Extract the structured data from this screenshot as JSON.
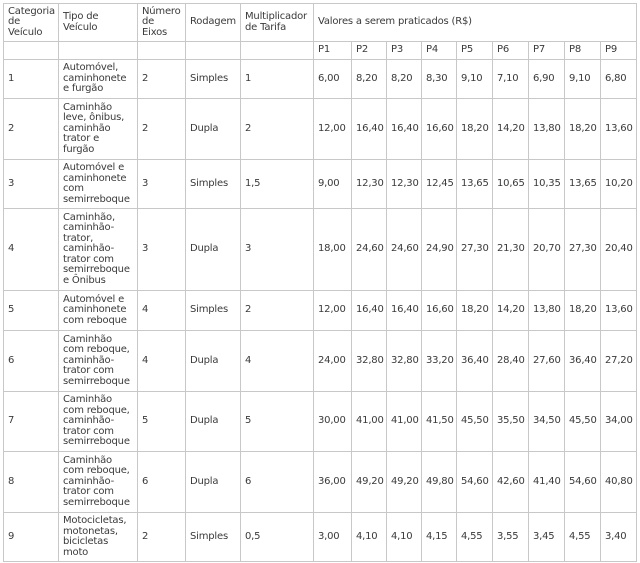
{
  "headers": {
    "categoria": "Categoria\nde\nVeículo",
    "tipo": "Tipo de\nVeículo",
    "eixos": "Número\nde\nEixos",
    "rodagem": "Rodagem",
    "multiplicador": "Multiplicador\nde Tarifa",
    "valores": "Valores a serem praticados (R$)",
    "plazas": [
      "P1",
      "P2",
      "P3",
      "P4",
      "P5",
      "P6",
      "P7",
      "P8",
      "P9"
    ]
  },
  "rows": [
    {
      "categoria": "1",
      "tipo": "Automóvel,\ncaminhonete\ne furgão",
      "eixos": "2",
      "rodagem": "Simples",
      "multiplicador": "1",
      "valores": [
        "6,00",
        "8,20",
        "8,20",
        "8,30",
        "9,10",
        "7,10",
        "6,90",
        "9,10",
        "6,80"
      ]
    },
    {
      "categoria": "2",
      "tipo": "Caminhão\nleve, ônibus,\ncaminhão\ntrator e\nfurgão",
      "eixos": "2",
      "rodagem": "Dupla",
      "multiplicador": "2",
      "valores": [
        "12,00",
        "16,40",
        "16,40",
        "16,60",
        "18,20",
        "14,20",
        "13,80",
        "18,20",
        "13,60"
      ]
    },
    {
      "categoria": "3",
      "tipo": "Automóvel e\ncaminhonete\ncom\nsemirreboque",
      "eixos": "3",
      "rodagem": "Simples",
      "multiplicador": "1,5",
      "valores": [
        "9,00",
        "12,30",
        "12,30",
        "12,45",
        "13,65",
        "10,65",
        "10,35",
        "13,65",
        "10,20"
      ]
    },
    {
      "categoria": "4",
      "tipo": "Caminhão,\ncaminhão-\ntrator,\ncaminhão-\ntrator com\nsemirreboque\ne Ônibus",
      "eixos": "3",
      "rodagem": "Dupla",
      "multiplicador": "3",
      "valores": [
        "18,00",
        "24,60",
        "24,60",
        "24,90",
        "27,30",
        "21,30",
        "20,70",
        "27,30",
        "20,40"
      ]
    },
    {
      "categoria": "5",
      "tipo": "Automóvel e\ncaminhonete\ncom reboque",
      "eixos": "4",
      "rodagem": "Simples",
      "multiplicador": "2",
      "valores": [
        "12,00",
        "16,40",
        "16,40",
        "16,60",
        "18,20",
        "14,20",
        "13,80",
        "18,20",
        "13,60"
      ]
    },
    {
      "categoria": "6",
      "tipo": "Caminhão\ncom reboque,\ncaminhão-\ntrator com\nsemirreboque",
      "eixos": "4",
      "rodagem": "Dupla",
      "multiplicador": "4",
      "valores": [
        "24,00",
        "32,80",
        "32,80",
        "33,20",
        "36,40",
        "28,40",
        "27,60",
        "36,40",
        "27,20"
      ]
    },
    {
      "categoria": "7",
      "tipo": "Caminhão\ncom reboque,\ncaminhão-\ntrator com\nsemirreboque",
      "eixos": "5",
      "rodagem": "Dupla",
      "multiplicador": "5",
      "valores": [
        "30,00",
        "41,00",
        "41,00",
        "41,50",
        "45,50",
        "35,50",
        "34,50",
        "45,50",
        "34,00"
      ]
    },
    {
      "categoria": "8",
      "tipo": "Caminhão\ncom reboque,\ncaminhão-\ntrator com\nsemirreboque",
      "eixos": "6",
      "rodagem": "Dupla",
      "multiplicador": "6",
      "valores": [
        "36,00",
        "49,20",
        "49,20",
        "49,80",
        "54,60",
        "42,60",
        "41,40",
        "54,60",
        "40,80"
      ]
    },
    {
      "categoria": "9",
      "tipo": "Motocicletas,\nmotonetas,\nbicicletas\nmoto",
      "eixos": "2",
      "rodagem": "Simples",
      "multiplicador": "0,5",
      "valores": [
        "3,00",
        "4,10",
        "4,10",
        "4,15",
        "4,55",
        "3,55",
        "3,45",
        "4,55",
        "3,40"
      ]
    }
  ]
}
